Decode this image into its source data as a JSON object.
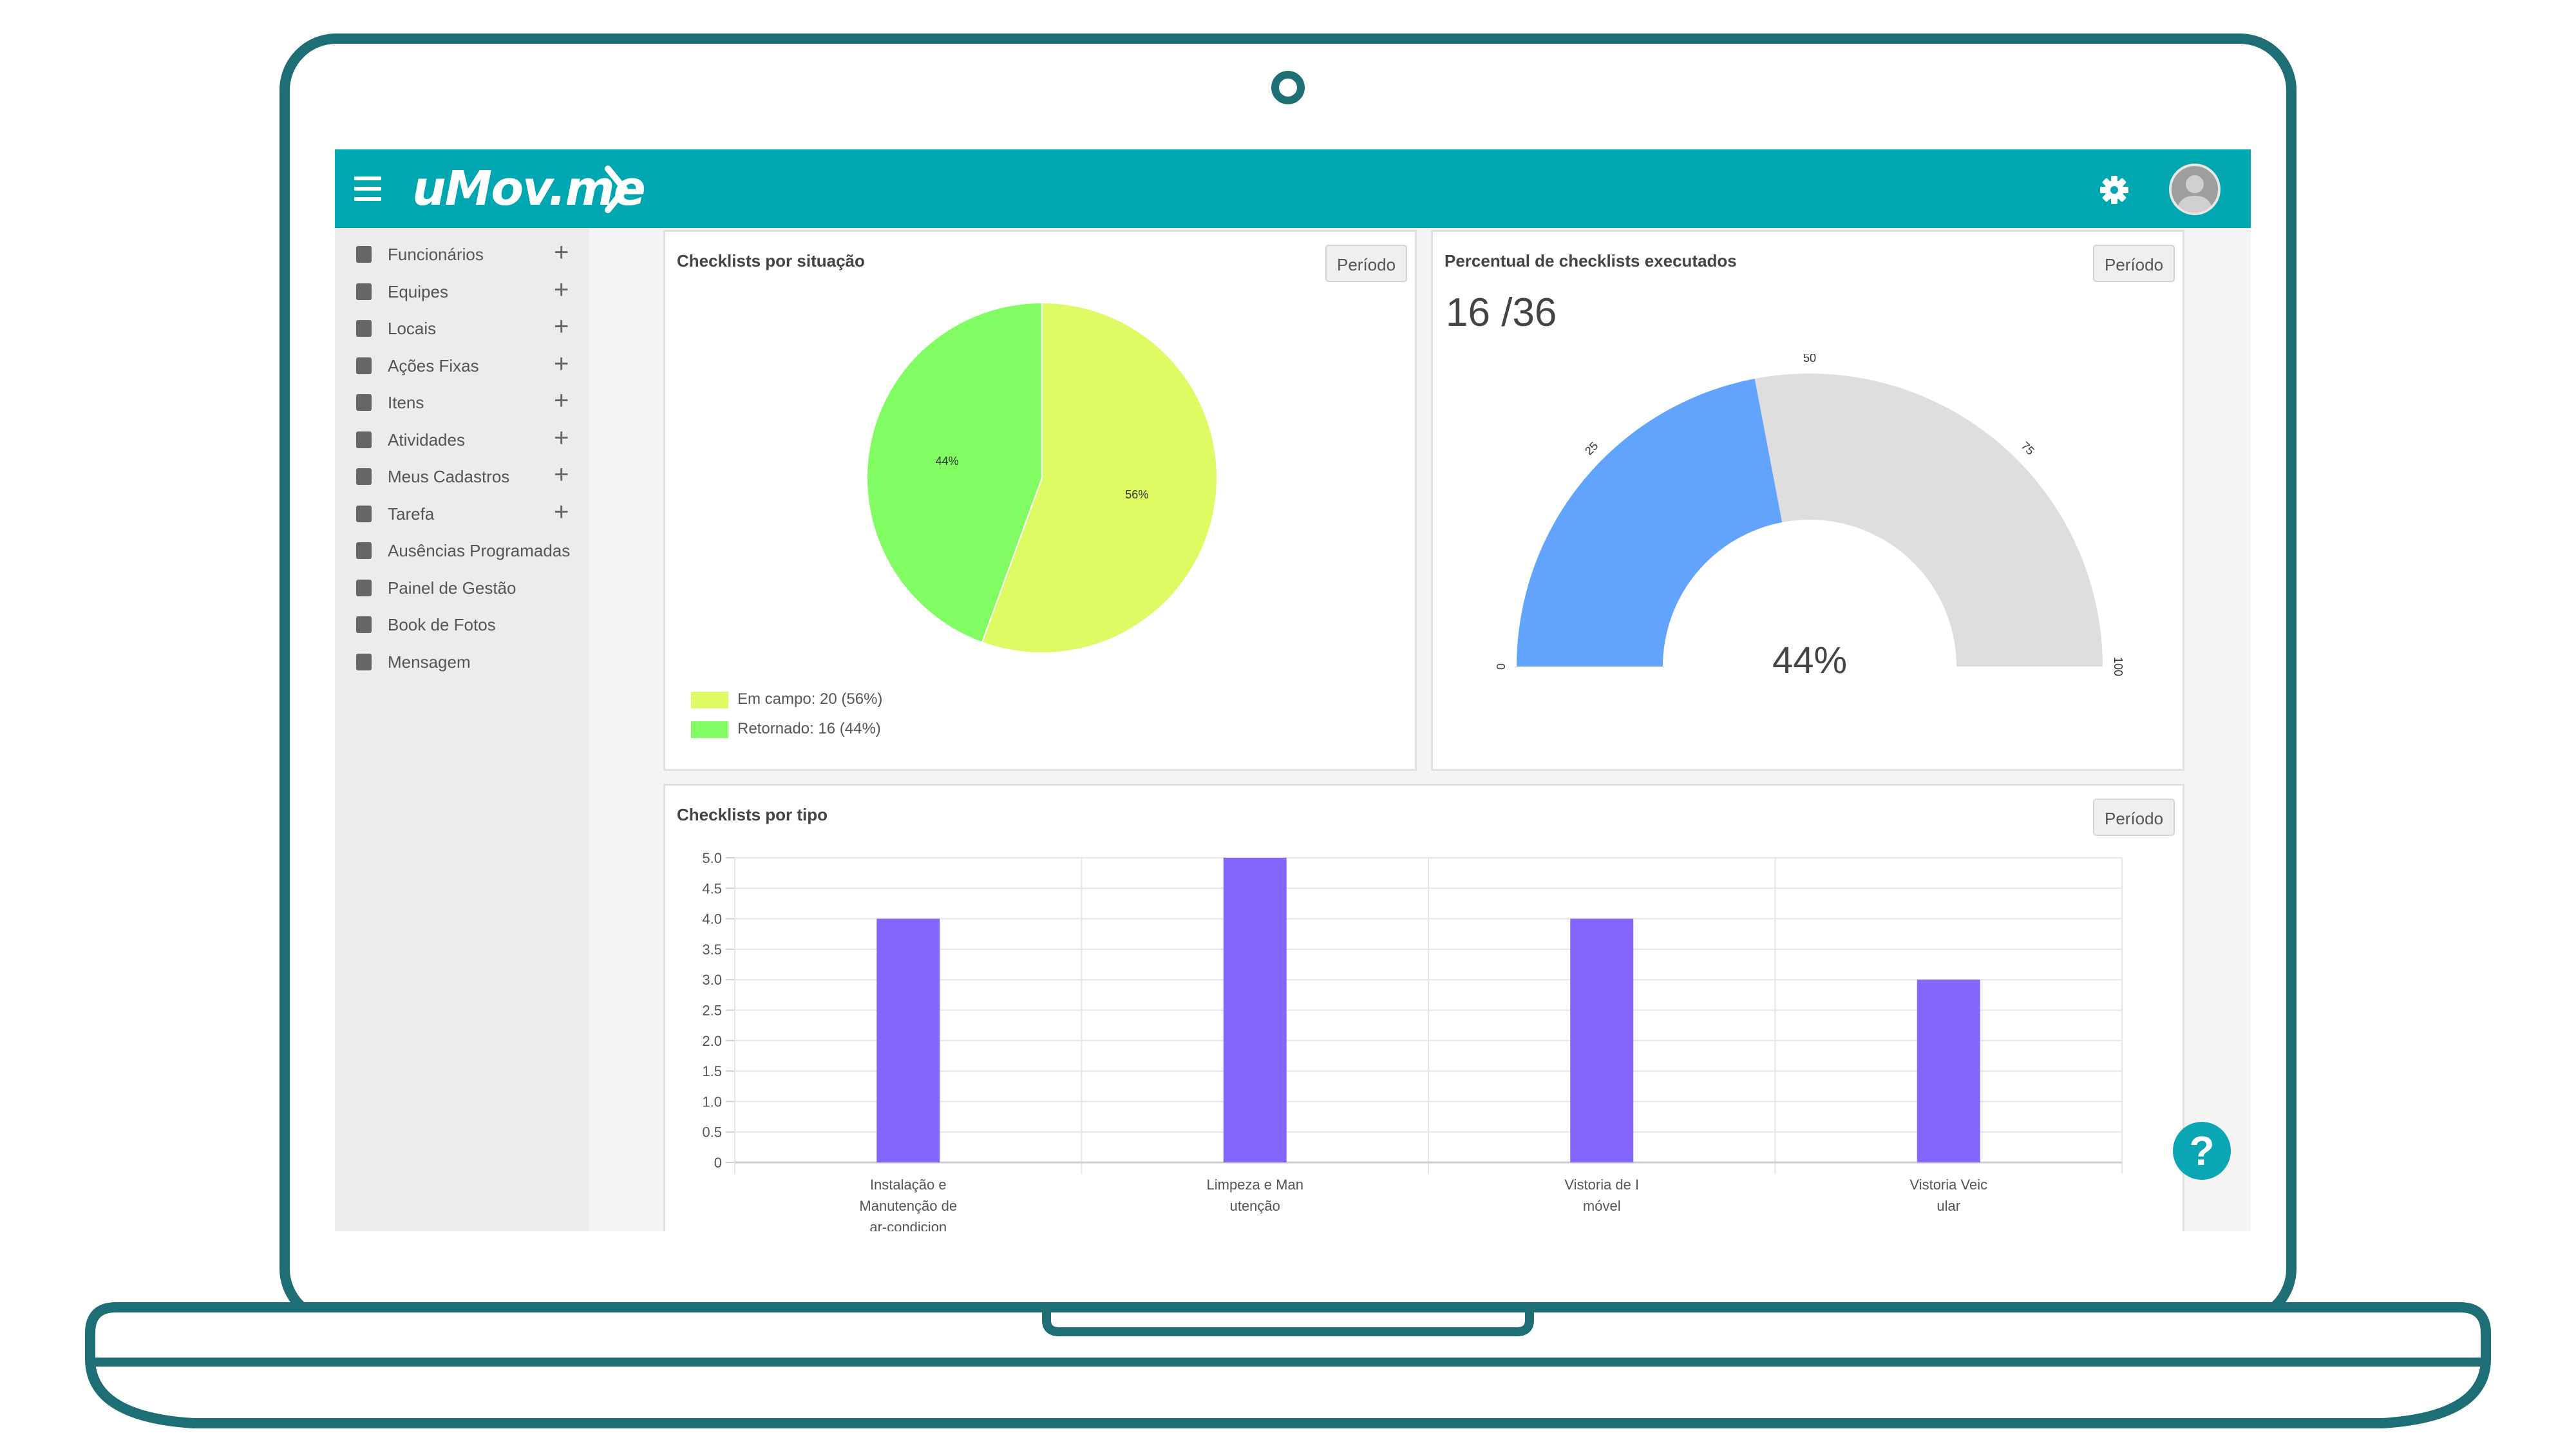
{
  "header": {
    "brand": "uMov.me"
  },
  "icons": {
    "menu": "hamburger-icon",
    "settings": "gear-icon",
    "avatar": "user-avatar",
    "help": "question-mark-icon"
  },
  "colors": {
    "accent": "#00a7b1",
    "pie_em_campo": "#ddfc63",
    "pie_retornado": "#82fc63",
    "gauge_filled": "#62a3fe",
    "gauge_empty": "#dedede",
    "bar": "#8466ff"
  },
  "sidebar": {
    "items": [
      {
        "label": "Funcionários",
        "icon": "user-icon",
        "expandable": true
      },
      {
        "label": "Equipes",
        "icon": "users-icon",
        "expandable": true
      },
      {
        "label": "Locais",
        "icon": "home-icon",
        "expandable": true
      },
      {
        "label": "Ações Fixas",
        "icon": "book-icon",
        "expandable": true
      },
      {
        "label": "Itens",
        "icon": "box-icon",
        "expandable": true
      },
      {
        "label": "Atividades",
        "icon": "document-icon",
        "expandable": true
      },
      {
        "label": "Meus Cadastros",
        "icon": "file-icon",
        "expandable": true
      },
      {
        "label": "Tarefa",
        "icon": "clipboard-icon",
        "expandable": true
      },
      {
        "label": "Ausências Programadas",
        "icon": "calendar-icon",
        "expandable": false
      },
      {
        "label": "Painel de Gestão",
        "icon": "dashboard-icon",
        "expandable": false
      },
      {
        "label": "Book de Fotos",
        "icon": "photo-book-icon",
        "expandable": false
      },
      {
        "label": "Mensagem",
        "icon": "envelope-icon",
        "expandable": false
      }
    ],
    "plus": "+"
  },
  "cards": {
    "situacao": {
      "title": "Checklists por situação",
      "button": "Período",
      "legend": [
        "Em campo: 20 (56%)",
        "Retornado: 16 (44%)"
      ]
    },
    "percentual": {
      "title": "Percentual de checklists executados",
      "button": "Período",
      "count": "16 /36"
    },
    "tipo": {
      "title": "Checklists por tipo",
      "button": "Período"
    }
  },
  "chart_data": [
    {
      "type": "pie",
      "title": "Checklists por situação",
      "categories": [
        "Em campo",
        "Retornado"
      ],
      "values": [
        20,
        16
      ],
      "slice_labels": [
        "56%",
        "44%"
      ]
    },
    {
      "type": "gauge",
      "title": "Percentual de checklists executados",
      "value": 44,
      "value_label": "44%",
      "min": 0,
      "max": 100,
      "ticks": [
        "0",
        "25",
        "50",
        "75",
        "100"
      ]
    },
    {
      "type": "bar",
      "title": "Checklists por tipo",
      "categories": [
        [
          "Instalação e",
          "Manutenção de",
          "ar-condicion"
        ],
        [
          "Limpeza e Man",
          "utenção"
        ],
        [
          "Vistoria de I",
          "móvel"
        ],
        [
          "Vistoria Veic",
          "ular"
        ]
      ],
      "values": [
        4,
        5,
        4,
        3
      ],
      "ylim": [
        0,
        5
      ],
      "yticks": [
        "5.0",
        "4.5",
        "4.0",
        "3.5",
        "3.0",
        "2.5",
        "2.0",
        "1.5",
        "1.0",
        "0.5",
        "0"
      ],
      "grid": true
    }
  ]
}
